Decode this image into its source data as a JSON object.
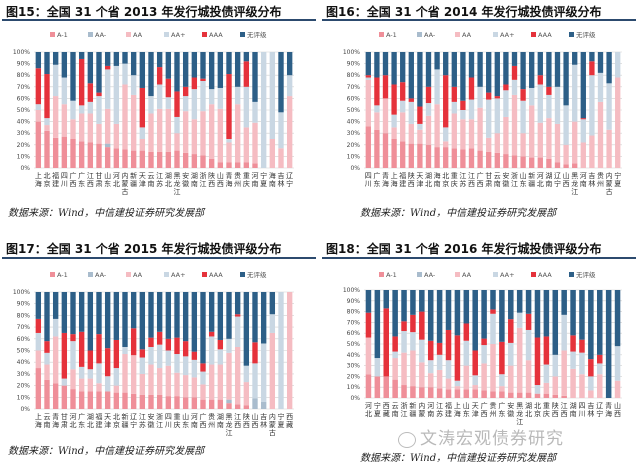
{
  "source_note": "数据来源：Wind，中信建投证券研究发展部",
  "watermark": "文涛宏观债券研究",
  "legend": [
    "A-1",
    "AA-",
    "AA",
    "AA+",
    "AAA",
    "无评级"
  ],
  "colors": {
    "A-1": "#ef8f99",
    "AA-": "#a9bccd",
    "AA": "#f5bcc2",
    "AA+": "#c9d7e3",
    "AAA": "#e5323b",
    "无评级": "#2d5f87"
  },
  "chart_data": [
    {
      "type": "bar",
      "stacked": true,
      "percent": true,
      "title": "图15：全国 31 个省 2013 年发行城投债评级分布",
      "ylim": [
        0,
        100
      ],
      "yticks": [
        "0%",
        "10%",
        "20%",
        "30%",
        "40%",
        "50%",
        "60%",
        "70%",
        "80%",
        "90%",
        "100%"
      ],
      "grid": true,
      "legend_position": "top",
      "series_names": [
        "A-1",
        "AA-",
        "AA",
        "AA+",
        "AAA",
        "无评级"
      ],
      "categories": [
        "上海",
        "北京",
        "福建",
        "四川",
        "广西",
        "广东",
        "江西",
        "甘肃",
        "山东",
        "河北",
        "内蒙古",
        "新疆",
        "天津",
        "云南",
        "江苏",
        "湖北",
        "黑龙江",
        "安徽",
        "湖南",
        "浙江",
        "陕西",
        "山西",
        "青海",
        "贵州",
        "重庆",
        "河南",
        "宁夏",
        "海南",
        "吉林",
        "辽宁"
      ],
      "values": [
        [
          40,
          0,
          10,
          5,
          31,
          14
        ],
        [
          32,
          0,
          5,
          6,
          38,
          19
        ],
        [
          26,
          0,
          36,
          27,
          0,
          11
        ],
        [
          27,
          0,
          28,
          23,
          0,
          22
        ],
        [
          25,
          0,
          17,
          16,
          0,
          42
        ],
        [
          23,
          0,
          24,
          7,
          40,
          6
        ],
        [
          22,
          0,
          25,
          10,
          16,
          27
        ],
        [
          21,
          0,
          17,
          24,
          3,
          35
        ],
        [
          18,
          3,
          30,
          34,
          3,
          12
        ],
        [
          17,
          0,
          21,
          50,
          0,
          12
        ],
        [
          16,
          0,
          56,
          18,
          0,
          10
        ],
        [
          15,
          0,
          48,
          17,
          0,
          20
        ],
        [
          15,
          0,
          10,
          10,
          34,
          31
        ],
        [
          14,
          0,
          33,
          15,
          0,
          38
        ],
        [
          14,
          0,
          37,
          21,
          15,
          13
        ],
        [
          14,
          0,
          37,
          10,
          16,
          23
        ],
        [
          15,
          0,
          15,
          14,
          22,
          34
        ],
        [
          13,
          0,
          36,
          13,
          8,
          30
        ],
        [
          12,
          0,
          30,
          26,
          10,
          22
        ],
        [
          11,
          0,
          38,
          26,
          2,
          23
        ],
        [
          8,
          0,
          47,
          13,
          0,
          32
        ],
        [
          5,
          0,
          46,
          18,
          0,
          31
        ],
        [
          5,
          0,
          17,
          3,
          56,
          19
        ],
        [
          5,
          0,
          50,
          15,
          0,
          30
        ],
        [
          5,
          0,
          30,
          35,
          22,
          8
        ],
        [
          4,
          0,
          35,
          18,
          0,
          43
        ],
        [
          0,
          0,
          0,
          100,
          0,
          0
        ],
        [
          0,
          0,
          25,
          75,
          0,
          0
        ],
        [
          0,
          0,
          17,
          31,
          0,
          52
        ],
        [
          0,
          0,
          62,
          18,
          0,
          20
        ]
      ]
    },
    {
      "type": "bar",
      "stacked": true,
      "percent": true,
      "title": "图16：全国 31 个省 2014 年发行城投债评级分布",
      "ylim": [
        0,
        100
      ],
      "yticks": [
        "0%",
        "10%",
        "20%",
        "30%",
        "40%",
        "50%",
        "60%",
        "70%",
        "80%",
        "90%",
        "100%"
      ],
      "grid": true,
      "legend_position": "top",
      "series_names": [
        "A-1",
        "AA-",
        "AA",
        "AA+",
        "AAA",
        "无评级"
      ],
      "categories": [
        "四川",
        "广东",
        "青海",
        "上海",
        "福建",
        "陕西",
        "天津",
        "湖北",
        "海南",
        "北京",
        "重庆",
        "江苏",
        "江西",
        "广西",
        "甘肃",
        "云南",
        "安徽",
        "浙江",
        "山东",
        "新疆",
        "河北",
        "湖南",
        "辽宁",
        "山西",
        "黑龙江",
        "河南",
        "吉林",
        "贵州",
        "内蒙古",
        "宁夏"
      ],
      "values": [
        [
          36,
          0,
          40,
          2,
          2,
          20
        ],
        [
          33,
          0,
          15,
          6,
          24,
          22
        ],
        [
          30,
          0,
          30,
          0,
          20,
          20
        ],
        [
          25,
          0,
          10,
          11,
          26,
          28
        ],
        [
          23,
          0,
          25,
          10,
          16,
          26
        ],
        [
          21,
          0,
          17,
          19,
          3,
          40
        ],
        [
          21,
          0,
          12,
          5,
          15,
          47
        ],
        [
          20,
          0,
          25,
          11,
          14,
          30
        ],
        [
          18,
          0,
          37,
          30,
          0,
          15
        ],
        [
          18,
          0,
          5,
          12,
          45,
          20
        ],
        [
          17,
          0,
          30,
          10,
          13,
          30
        ],
        [
          16,
          0,
          26,
          8,
          8,
          42
        ],
        [
          17,
          0,
          25,
          17,
          19,
          22
        ],
        [
          15,
          0,
          37,
          18,
          0,
          30
        ],
        [
          14,
          0,
          12,
          33,
          6,
          35
        ],
        [
          13,
          0,
          17,
          30,
          2,
          38
        ],
        [
          12,
          0,
          32,
          23,
          5,
          28
        ],
        [
          11,
          0,
          52,
          13,
          12,
          12
        ],
        [
          10,
          0,
          20,
          28,
          10,
          32
        ],
        [
          9,
          0,
          45,
          15,
          0,
          31
        ],
        [
          9,
          0,
          30,
          33,
          8,
          20
        ],
        [
          8,
          0,
          35,
          20,
          7,
          30
        ],
        [
          5,
          0,
          33,
          32,
          0,
          30
        ],
        [
          3,
          0,
          17,
          34,
          0,
          46
        ],
        [
          4,
          0,
          36,
          49,
          0,
          11
        ],
        [
          0,
          0,
          22,
          20,
          1,
          57
        ],
        [
          0,
          0,
          28,
          52,
          12,
          8
        ],
        [
          0,
          0,
          57,
          25,
          0,
          18
        ],
        [
          0,
          0,
          33,
          40,
          0,
          27
        ],
        [
          0,
          0,
          78,
          22,
          0,
          0
        ]
      ]
    },
    {
      "type": "bar",
      "stacked": true,
      "percent": true,
      "title": "图17：全国 31 个省 2015 年发行城投债评级分布",
      "ylim": [
        0,
        100
      ],
      "yticks": [
        "0%",
        "10%",
        "20%",
        "30%",
        "40%",
        "50%",
        "60%",
        "70%",
        "80%",
        "90%",
        "100%"
      ],
      "grid": true,
      "legend_position": "top",
      "series_names": [
        "A-1",
        "AA-",
        "AA",
        "AA+",
        "AAA",
        "无评级"
      ],
      "categories": [
        "上海",
        "云南",
        "青海",
        "甘肃",
        "河北",
        "广东",
        "湖北",
        "福建",
        "天津",
        "北京",
        "新疆",
        "辽宁",
        "江苏",
        "安徽",
        "浙江",
        "四川",
        "重庆",
        "山东",
        "河南",
        "广西",
        "贵州",
        "湖南",
        "黑龙江",
        "江西",
        "陕西",
        "山西",
        "吉林",
        "内蒙古",
        "宁夏",
        "西藏"
      ],
      "values": [
        [
          35,
          0,
          15,
          15,
          12,
          23
        ],
        [
          25,
          0,
          13,
          10,
          10,
          42
        ],
        [
          22,
          0,
          40,
          15,
          0,
          23
        ],
        [
          20,
          0,
          0,
          6,
          39,
          35
        ],
        [
          17,
          0,
          17,
          24,
          6,
          36
        ],
        [
          15,
          0,
          11,
          10,
          30,
          34
        ],
        [
          15,
          0,
          11,
          8,
          16,
          50
        ],
        [
          15,
          0,
          7,
          17,
          25,
          36
        ],
        [
          15,
          0,
          0,
          13,
          24,
          48
        ],
        [
          14,
          0,
          6,
          15,
          24,
          41
        ],
        [
          14,
          0,
          33,
          6,
          0,
          47
        ],
        [
          13,
          0,
          33,
          0,
          23,
          31
        ],
        [
          12,
          0,
          18,
          14,
          7,
          49
        ],
        [
          12,
          0,
          26,
          15,
          8,
          39
        ],
        [
          12,
          0,
          23,
          20,
          11,
          34
        ],
        [
          11,
          0,
          26,
          13,
          10,
          40
        ],
        [
          11,
          0,
          20,
          16,
          14,
          39
        ],
        [
          10,
          0,
          19,
          16,
          13,
          42
        ],
        [
          10,
          0,
          17,
          15,
          7,
          51
        ],
        [
          8,
          0,
          13,
          11,
          7,
          61
        ],
        [
          8,
          0,
          30,
          24,
          4,
          34
        ],
        [
          8,
          0,
          30,
          13,
          8,
          41
        ],
        [
          5,
          3,
          40,
          12,
          0,
          40
        ],
        [
          4,
          0,
          49,
          26,
          2,
          19
        ],
        [
          3,
          0,
          20,
          14,
          0,
          63
        ],
        [
          0,
          9,
          0,
          30,
          18,
          43
        ],
        [
          0,
          6,
          0,
          50,
          0,
          44
        ],
        [
          0,
          0,
          65,
          16,
          0,
          19
        ],
        [
          0,
          0,
          0,
          100,
          0,
          0
        ],
        [
          0,
          0,
          100,
          0,
          0,
          0
        ]
      ]
    },
    {
      "type": "bar",
      "stacked": true,
      "percent": true,
      "title": "图18：全国 31 个省 2016 年发行城投债评级分布",
      "ylim": [
        0,
        100
      ],
      "yticks": [
        "0%",
        "10%",
        "20%",
        "30%",
        "40%",
        "50%",
        "60%",
        "70%",
        "80%",
        "90%",
        "100%"
      ],
      "grid": true,
      "legend_position": "top",
      "series_names": [
        "A-1",
        "AA-",
        "AA",
        "AA+",
        "AAA",
        "无评级"
      ],
      "categories": [
        "河北",
        "宁夏",
        "西藏",
        "云南",
        "浙江",
        "新疆",
        "内蒙",
        "河南",
        "江苏",
        "福建",
        "上海",
        "山东",
        "天津",
        "广西",
        "贵州",
        "广东",
        "安徽",
        "黑龙江",
        "湖北",
        "北京",
        "重庆",
        "陕西",
        "江西",
        "湖南",
        "四川",
        "吉林",
        "辽宁",
        "青海",
        "山西"
      ],
      "values": [
        [
          22,
          0,
          34,
          0,
          23,
          21
        ],
        [
          20,
          0,
          0,
          17,
          0,
          63
        ],
        [
          20,
          0,
          0,
          0,
          63,
          17
        ],
        [
          17,
          0,
          20,
          6,
          14,
          43
        ],
        [
          12,
          0,
          30,
          20,
          9,
          29
        ],
        [
          11,
          0,
          33,
          17,
          16,
          23
        ],
        [
          10,
          0,
          23,
          21,
          26,
          20
        ],
        [
          10,
          0,
          13,
          12,
          18,
          47
        ],
        [
          9,
          0,
          17,
          14,
          11,
          49
        ],
        [
          8,
          0,
          10,
          17,
          28,
          37
        ],
        [
          8,
          0,
          3,
          5,
          42,
          42
        ],
        [
          8,
          0,
          22,
          23,
          16,
          31
        ],
        [
          8,
          0,
          4,
          9,
          23,
          56
        ],
        [
          7,
          0,
          25,
          17,
          6,
          45
        ],
        [
          6,
          0,
          44,
          28,
          4,
          18
        ],
        [
          6,
          0,
          5,
          11,
          30,
          48
        ],
        [
          5,
          0,
          25,
          21,
          22,
          27
        ],
        [
          5,
          0,
          60,
          14,
          0,
          21
        ],
        [
          5,
          0,
          30,
          28,
          15,
          22
        ],
        [
          4,
          0,
          0,
          8,
          44,
          44
        ],
        [
          4,
          0,
          10,
          17,
          26,
          43
        ],
        [
          3,
          0,
          17,
          20,
          0,
          60
        ],
        [
          2,
          0,
          42,
          33,
          0,
          23
        ],
        [
          0,
          0,
          27,
          16,
          15,
          42
        ],
        [
          0,
          0,
          22,
          20,
          12,
          46
        ],
        [
          0,
          0,
          7,
          13,
          16,
          64
        ],
        [
          0,
          0,
          22,
          10,
          8,
          60
        ],
        [
          0,
          0,
          0,
          0,
          0,
          100
        ],
        [
          0,
          0,
          16,
          32,
          0,
          52
        ]
      ]
    }
  ]
}
